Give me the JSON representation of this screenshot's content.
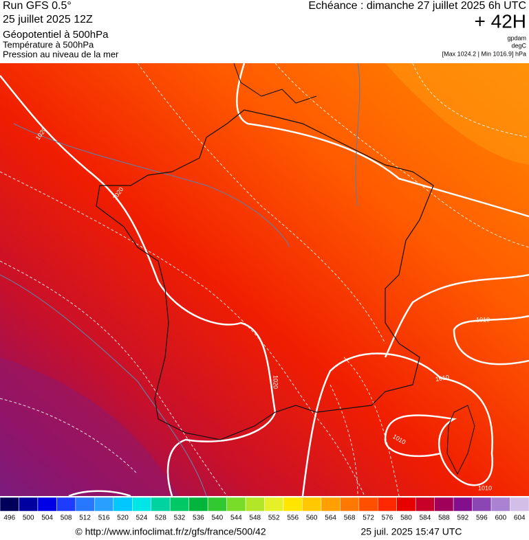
{
  "header": {
    "run": "Run GFS 0.5°",
    "run_date": "25 juillet 2025 12Z",
    "field_1": "Géopotentiel à 500hPa",
    "field_2": "Température à 500hPa",
    "field_3": "Pression au niveau de la mer",
    "valid_time": "Echéance : dimanche 27 juillet 2025 6h UTC",
    "lead": "+ 42H",
    "unit_1": "gpdam",
    "unit_2": "degC",
    "pressure_range": "[Max 1024.2 | Min 1016.9] hPa"
  },
  "map": {
    "contour_labels": [
      "1020",
      "1020",
      "1020",
      "1010",
      "1010",
      "1010",
      "1010"
    ]
  },
  "legend": {
    "values": [
      496,
      500,
      504,
      508,
      512,
      516,
      520,
      524,
      528,
      532,
      536,
      540,
      544,
      548,
      552,
      556,
      560,
      564,
      568,
      572,
      576,
      580,
      584,
      588,
      592,
      596,
      600,
      604
    ],
    "colors": [
      "#00005a",
      "#0000a0",
      "#0000e6",
      "#1e3cff",
      "#2878ff",
      "#28a0ff",
      "#00c8ff",
      "#00e6e6",
      "#00d2a0",
      "#00c864",
      "#00b43c",
      "#32c832",
      "#78dc28",
      "#b4e628",
      "#e6f028",
      "#ffe600",
      "#ffc800",
      "#ffa000",
      "#ff7800",
      "#ff5000",
      "#ff2800",
      "#e60000",
      "#c80028",
      "#a0005a",
      "#82108c",
      "#8c46b4",
      "#aa82d2",
      "#d2bee6"
    ]
  },
  "footer": {
    "source": "© http://www.infoclimat.fr/z/gfs/france/500/42",
    "timestamp": "25 juil. 2025 15:47 UTC"
  }
}
